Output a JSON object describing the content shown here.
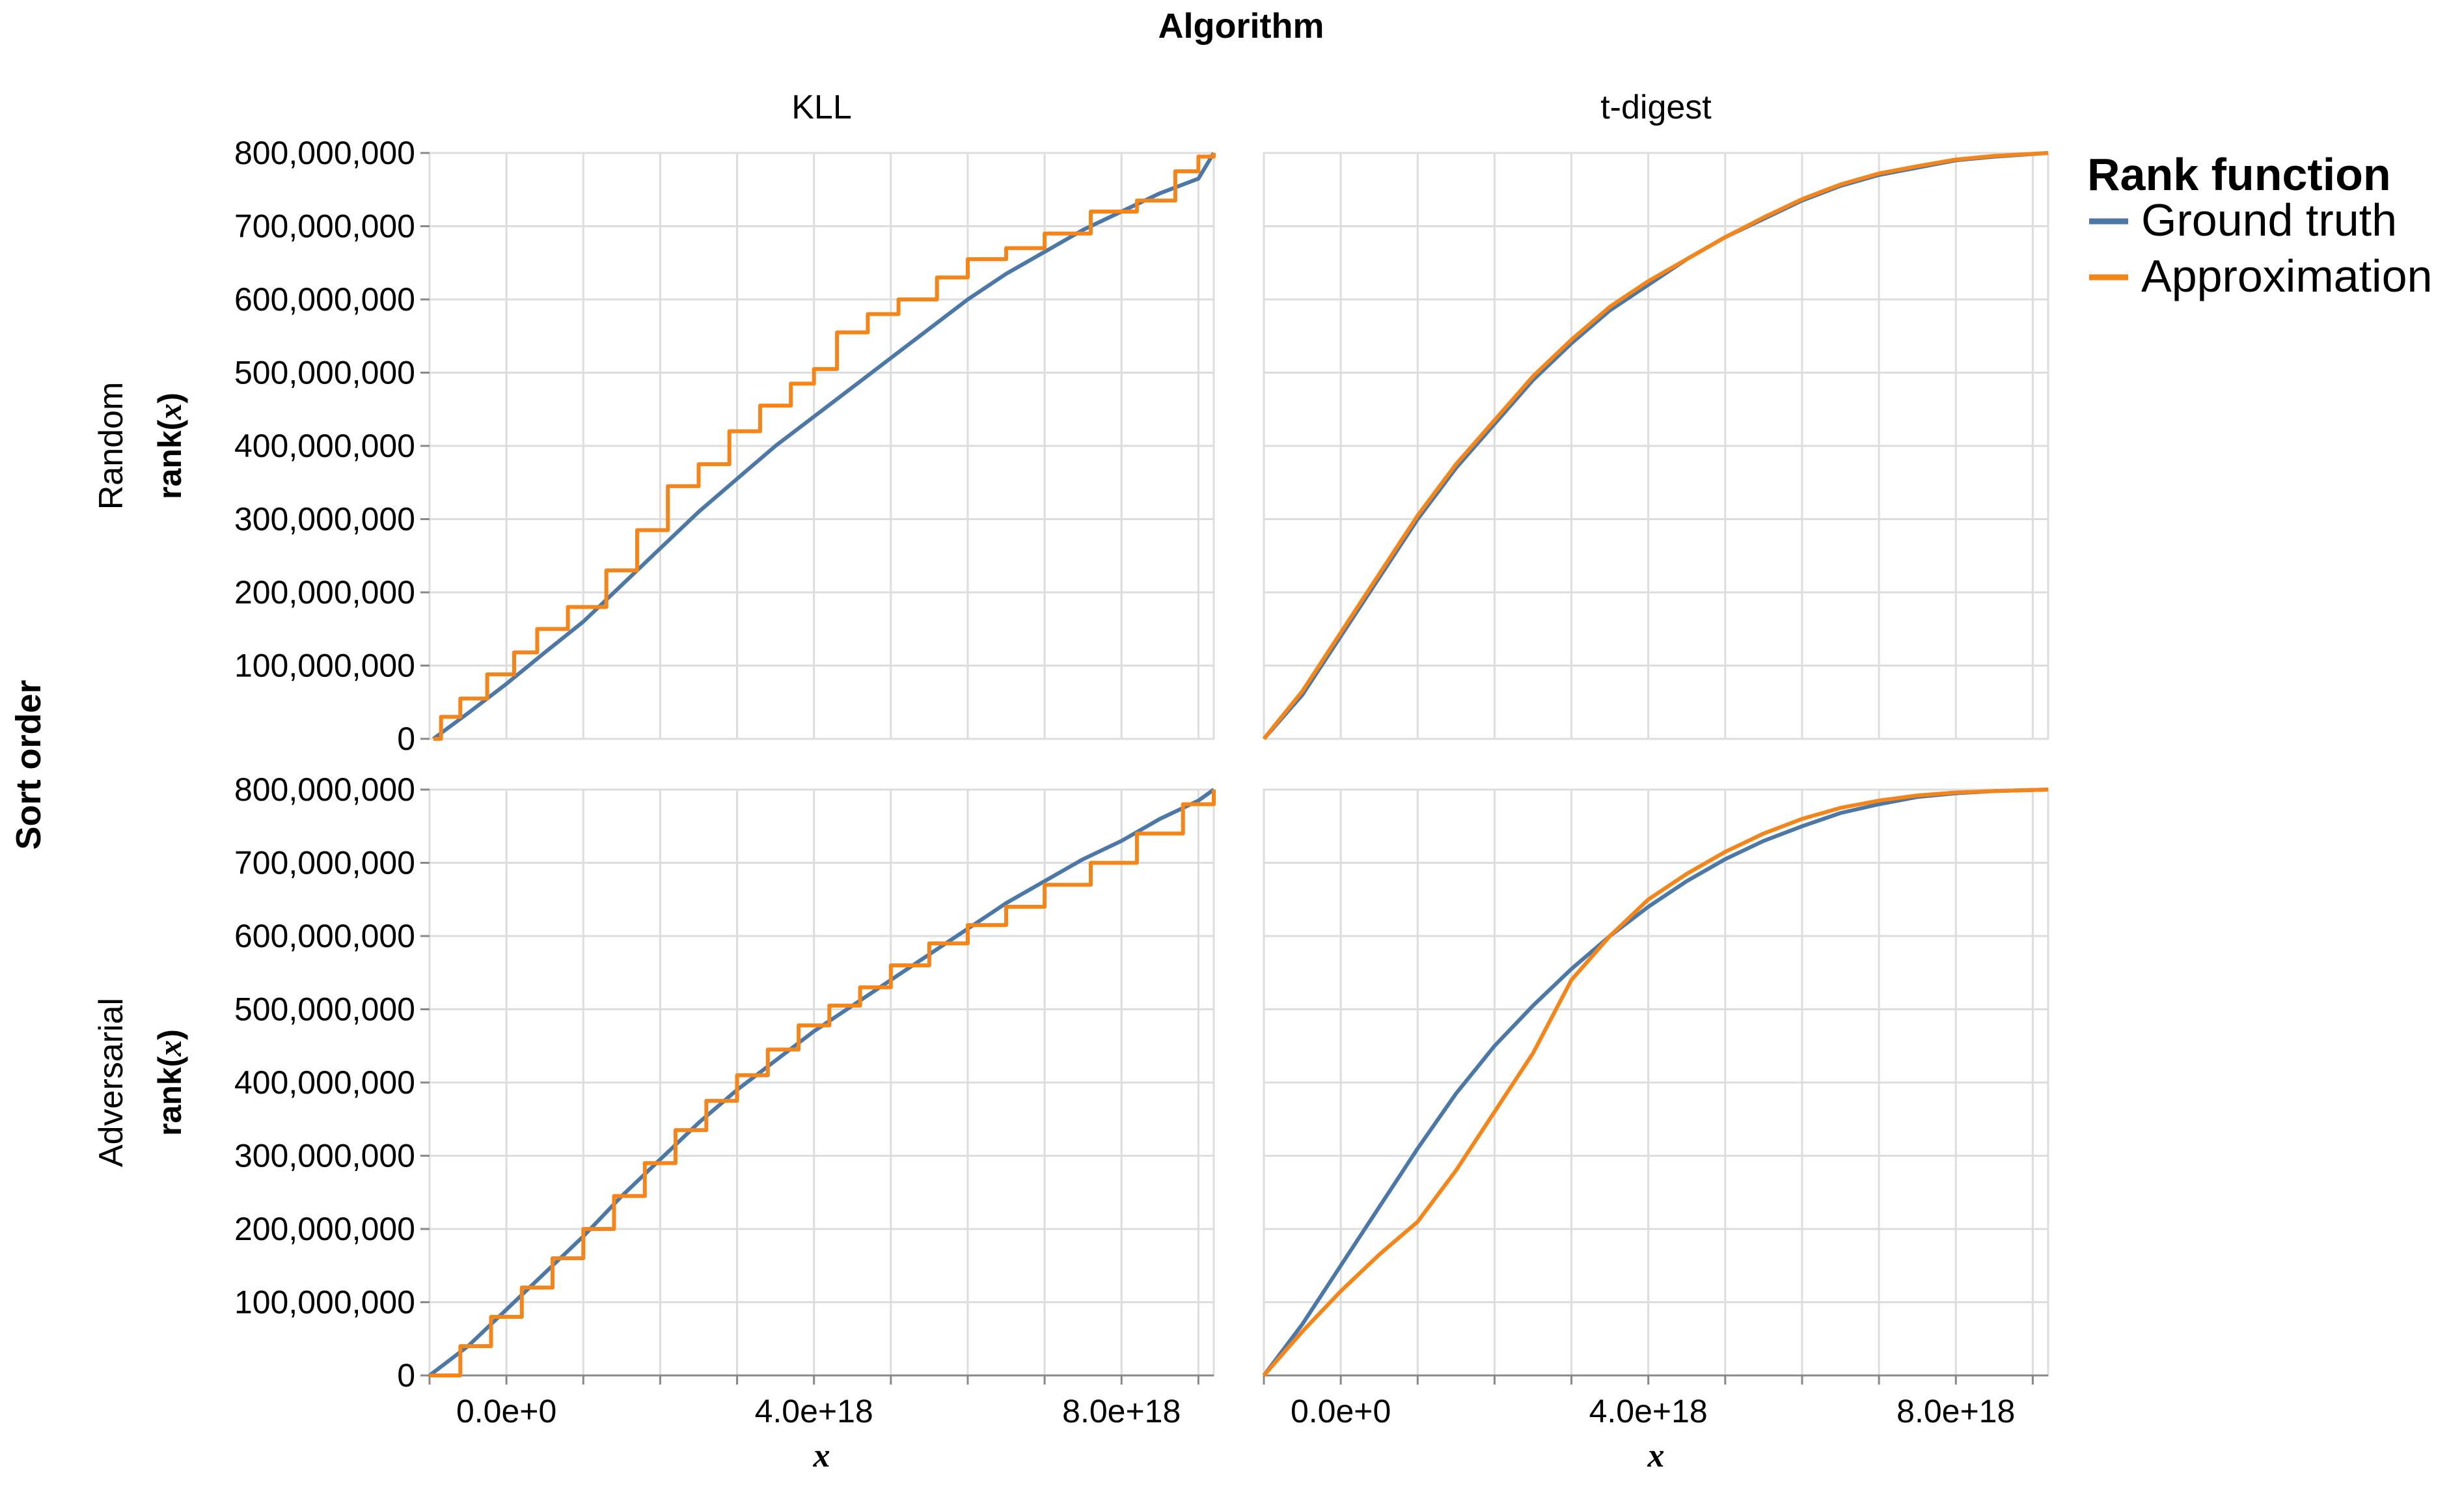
{
  "header": {
    "column_title": "Algorithm",
    "row_title": "Sort order"
  },
  "legend": {
    "title": "Rank function",
    "items": [
      {
        "label": "Ground truth",
        "color": "#4c78a8"
      },
      {
        "label": "Approximation",
        "color": "#f58518"
      }
    ]
  },
  "chart_data": {
    "type": "line",
    "facet_columns": [
      "KLL",
      "t-digest"
    ],
    "facet_rows": [
      "Random",
      "Adversarial"
    ],
    "xlabel": "x",
    "ylabel_parts": [
      "rank(",
      "x",
      ")"
    ],
    "xlim": [
      -1e+18,
      9.2e+18
    ],
    "ylim": [
      0,
      800000000
    ],
    "x_ticks": [
      0,
      4e+18,
      8e+18
    ],
    "x_tick_labels": [
      "0.0e+0",
      "4.0e+18",
      "8.0e+18"
    ],
    "x_minor_ticks": [
      -1e+18,
      0,
      1e+18,
      2e+18,
      3e+18,
      4e+18,
      5e+18,
      6e+18,
      7e+18,
      8e+18,
      9e+18
    ],
    "y_ticks": [
      0,
      100000000,
      200000000,
      300000000,
      400000000,
      500000000,
      600000000,
      700000000,
      800000000
    ],
    "y_tick_labels": [
      "0",
      "100,000,000",
      "200,000,000",
      "300,000,000",
      "400,000,000",
      "500,000,000",
      "600,000,000",
      "700,000,000",
      "800,000,000"
    ],
    "grid": true,
    "legend_position": "top-right",
    "panels": [
      {
        "column": "KLL",
        "row": "Random",
        "series": [
          {
            "name": "Ground truth",
            "points": [
              [
                -9.5e+17,
                0
              ],
              [
                -5e+17,
                35000000
              ],
              [
                0,
                75000000
              ],
              [
                5e+17,
                118000000
              ],
              [
                1e+18,
                160000000
              ],
              [
                1.5e+18,
                210000000
              ],
              [
                2e+18,
                260000000
              ],
              [
                2.5e+18,
                310000000
              ],
              [
                3e+18,
                355000000
              ],
              [
                3.5e+18,
                400000000
              ],
              [
                4e+18,
                440000000
              ],
              [
                4.5e+18,
                480000000
              ],
              [
                5e+18,
                520000000
              ],
              [
                5.5e+18,
                560000000
              ],
              [
                6e+18,
                600000000
              ],
              [
                6.5e+18,
                635000000
              ],
              [
                7e+18,
                665000000
              ],
              [
                7.5e+18,
                695000000
              ],
              [
                8e+18,
                720000000
              ],
              [
                8.5e+18,
                745000000
              ],
              [
                9e+18,
                765000000
              ],
              [
                9.2e+18,
                800000000
              ]
            ]
          },
          {
            "name": "Approximation",
            "step": true,
            "points": [
              [
                -9.5e+17,
                0
              ],
              [
                -8.5e+17,
                30000000
              ],
              [
                -6e+17,
                55000000
              ],
              [
                -2.5e+17,
                88000000
              ],
              [
                1e+17,
                118000000
              ],
              [
                4e+17,
                150000000
              ],
              [
                8e+17,
                180000000
              ],
              [
                1.3e+18,
                230000000
              ],
              [
                1.7e+18,
                285000000
              ],
              [
                2.1e+18,
                345000000
              ],
              [
                2.5e+18,
                375000000
              ],
              [
                2.9e+18,
                420000000
              ],
              [
                3.3e+18,
                455000000
              ],
              [
                3.7e+18,
                485000000
              ],
              [
                4e+18,
                505000000
              ],
              [
                4.3e+18,
                555000000
              ],
              [
                4.7e+18,
                580000000
              ],
              [
                5.1e+18,
                600000000
              ],
              [
                5.6e+18,
                630000000
              ],
              [
                6e+18,
                655000000
              ],
              [
                6.5e+18,
                670000000
              ],
              [
                7e+18,
                690000000
              ],
              [
                7.6e+18,
                720000000
              ],
              [
                8.2e+18,
                735000000
              ],
              [
                8.7e+18,
                775000000
              ],
              [
                9e+18,
                795000000
              ],
              [
                9.2e+18,
                800000000
              ]
            ]
          }
        ]
      },
      {
        "column": "t-digest",
        "row": "Random",
        "series": [
          {
            "name": "Ground truth",
            "points": [
              [
                -1e+18,
                0
              ],
              [
                -5e+17,
                60000000
              ],
              [
                0,
                140000000
              ],
              [
                5e+17,
                220000000
              ],
              [
                1e+18,
                300000000
              ],
              [
                1.5e+18,
                370000000
              ],
              [
                2e+18,
                430000000
              ],
              [
                2.5e+18,
                490000000
              ],
              [
                3e+18,
                540000000
              ],
              [
                3.5e+18,
                585000000
              ],
              [
                4e+18,
                620000000
              ],
              [
                4.5e+18,
                655000000
              ],
              [
                5e+18,
                685000000
              ],
              [
                5.5e+18,
                710000000
              ],
              [
                6e+18,
                735000000
              ],
              [
                6.5e+18,
                755000000
              ],
              [
                7e+18,
                770000000
              ],
              [
                7.5e+18,
                780000000
              ],
              [
                8e+18,
                790000000
              ],
              [
                8.5e+18,
                795000000
              ],
              [
                9.2e+18,
                800000000
              ]
            ]
          },
          {
            "name": "Approximation",
            "points": [
              [
                -1e+18,
                0
              ],
              [
                -5e+17,
                65000000
              ],
              [
                0,
                145000000
              ],
              [
                5e+17,
                225000000
              ],
              [
                1e+18,
                305000000
              ],
              [
                1.5e+18,
                375000000
              ],
              [
                2e+18,
                435000000
              ],
              [
                2.5e+18,
                495000000
              ],
              [
                3e+18,
                545000000
              ],
              [
                3.5e+18,
                590000000
              ],
              [
                4e+18,
                625000000
              ],
              [
                4.5e+18,
                655000000
              ],
              [
                5e+18,
                685000000
              ],
              [
                5.5e+18,
                712000000
              ],
              [
                6e+18,
                737000000
              ],
              [
                6.5e+18,
                757000000
              ],
              [
                7e+18,
                772000000
              ],
              [
                7.5e+18,
                782000000
              ],
              [
                8e+18,
                791000000
              ],
              [
                8.5e+18,
                796000000
              ],
              [
                9.2e+18,
                800000000
              ]
            ]
          }
        ]
      },
      {
        "column": "KLL",
        "row": "Adversarial",
        "series": [
          {
            "name": "Ground truth",
            "points": [
              [
                -1e+18,
                0
              ],
              [
                -5e+17,
                40000000
              ],
              [
                0,
                90000000
              ],
              [
                5e+17,
                140000000
              ],
              [
                1e+18,
                190000000
              ],
              [
                1.5e+18,
                245000000
              ],
              [
                2e+18,
                295000000
              ],
              [
                2.5e+18,
                345000000
              ],
              [
                3e+18,
                390000000
              ],
              [
                3.5e+18,
                430000000
              ],
              [
                4e+18,
                470000000
              ],
              [
                4.5e+18,
                505000000
              ],
              [
                5e+18,
                540000000
              ],
              [
                5.5e+18,
                575000000
              ],
              [
                6e+18,
                610000000
              ],
              [
                6.5e+18,
                645000000
              ],
              [
                7e+18,
                675000000
              ],
              [
                7.5e+18,
                705000000
              ],
              [
                8e+18,
                730000000
              ],
              [
                8.5e+18,
                760000000
              ],
              [
                9e+18,
                785000000
              ],
              [
                9.2e+18,
                800000000
              ]
            ]
          },
          {
            "name": "Approximation",
            "step": true,
            "points": [
              [
                -1e+18,
                0
              ],
              [
                -6e+17,
                40000000
              ],
              [
                -2e+17,
                80000000
              ],
              [
                2e+17,
                120000000
              ],
              [
                6e+17,
                160000000
              ],
              [
                1e+18,
                200000000
              ],
              [
                1.4e+18,
                245000000
              ],
              [
                1.8e+18,
                290000000
              ],
              [
                2.2e+18,
                335000000
              ],
              [
                2.6e+18,
                375000000
              ],
              [
                3e+18,
                410000000
              ],
              [
                3.4e+18,
                445000000
              ],
              [
                3.8e+18,
                478000000
              ],
              [
                4.2e+18,
                505000000
              ],
              [
                4.6e+18,
                530000000
              ],
              [
                5e+18,
                560000000
              ],
              [
                5.5e+18,
                590000000
              ],
              [
                6e+18,
                615000000
              ],
              [
                6.5e+18,
                640000000
              ],
              [
                7e+18,
                670000000
              ],
              [
                7.6e+18,
                700000000
              ],
              [
                8.2e+18,
                740000000
              ],
              [
                8.8e+18,
                780000000
              ],
              [
                9.2e+18,
                800000000
              ]
            ]
          }
        ]
      },
      {
        "column": "t-digest",
        "row": "Adversarial",
        "series": [
          {
            "name": "Ground truth",
            "points": [
              [
                -1e+18,
                0
              ],
              [
                -5e+17,
                70000000
              ],
              [
                0,
                150000000
              ],
              [
                5e+17,
                230000000
              ],
              [
                1e+18,
                310000000
              ],
              [
                1.5e+18,
                385000000
              ],
              [
                2e+18,
                450000000
              ],
              [
                2.5e+18,
                505000000
              ],
              [
                3e+18,
                555000000
              ],
              [
                3.5e+18,
                600000000
              ],
              [
                4e+18,
                640000000
              ],
              [
                4.5e+18,
                675000000
              ],
              [
                5e+18,
                705000000
              ],
              [
                5.5e+18,
                730000000
              ],
              [
                6e+18,
                750000000
              ],
              [
                6.5e+18,
                768000000
              ],
              [
                7e+18,
                780000000
              ],
              [
                7.5e+18,
                790000000
              ],
              [
                8e+18,
                795000000
              ],
              [
                8.5e+18,
                798000000
              ],
              [
                9.2e+18,
                800000000
              ]
            ]
          },
          {
            "name": "Approximation",
            "points": [
              [
                -1e+18,
                0
              ],
              [
                -5e+17,
                60000000
              ],
              [
                0,
                115000000
              ],
              [
                5e+17,
                165000000
              ],
              [
                1e+18,
                210000000
              ],
              [
                1.5e+18,
                280000000
              ],
              [
                2e+18,
                360000000
              ],
              [
                2.5e+18,
                440000000
              ],
              [
                3e+18,
                540000000
              ],
              [
                3.5e+18,
                600000000
              ],
              [
                4e+18,
                650000000
              ],
              [
                4.5e+18,
                685000000
              ],
              [
                5e+18,
                715000000
              ],
              [
                5.5e+18,
                740000000
              ],
              [
                6e+18,
                760000000
              ],
              [
                6.5e+18,
                775000000
              ],
              [
                7e+18,
                785000000
              ],
              [
                7.5e+18,
                792000000
              ],
              [
                8e+18,
                796000000
              ],
              [
                8.5e+18,
                798000000
              ],
              [
                9.2e+18,
                800000000
              ]
            ]
          }
        ]
      }
    ]
  }
}
